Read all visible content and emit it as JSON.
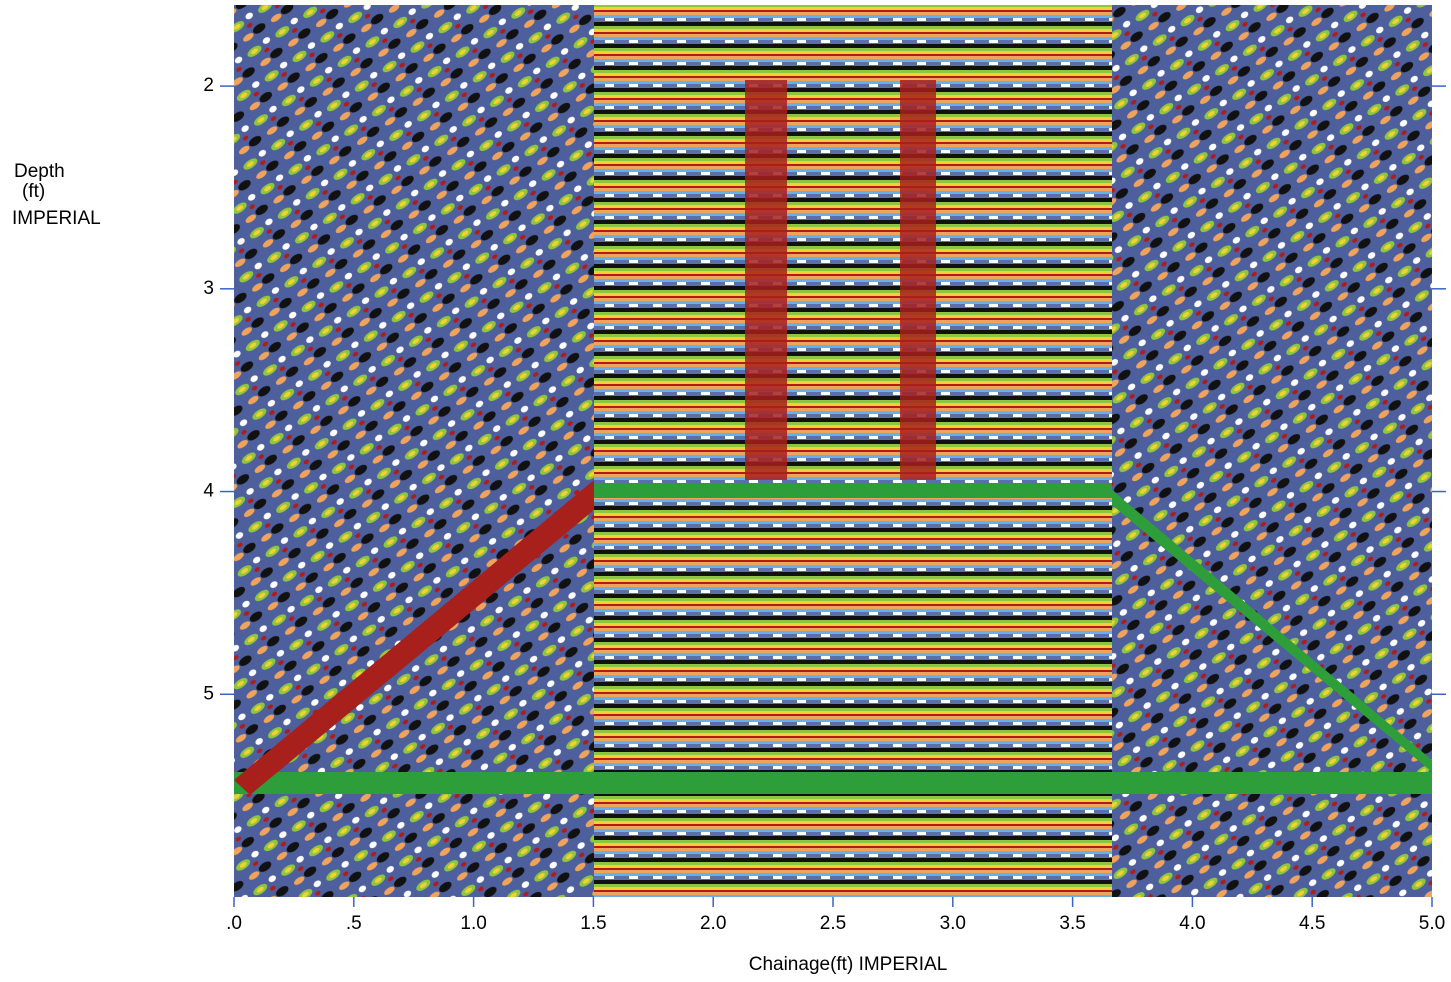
{
  "chart_data": {
    "type": "radargram",
    "x_label": "Chainage(ft)   IMPERIAL",
    "y_label": [
      "Depth",
      "(ft)",
      "IMPERIAL"
    ],
    "xlim": [
      0,
      5.0
    ],
    "ylim": [
      1.6,
      6.0
    ],
    "xticks": [
      {
        "value": 0,
        "label": ".0"
      },
      {
        "value": 0.5,
        "label": ".5"
      },
      {
        "value": 1,
        "label": "1.0"
      },
      1.5,
      {
        "value": 2,
        "label": "2.0"
      },
      2.5,
      {
        "value": 3,
        "label": "3.0"
      },
      3.5,
      {
        "value": 4,
        "label": "4.0"
      },
      4.5,
      {
        "value": 5,
        "label": "5.0"
      }
    ],
    "yticks": [
      2,
      3,
      4,
      5
    ]
  }
}
